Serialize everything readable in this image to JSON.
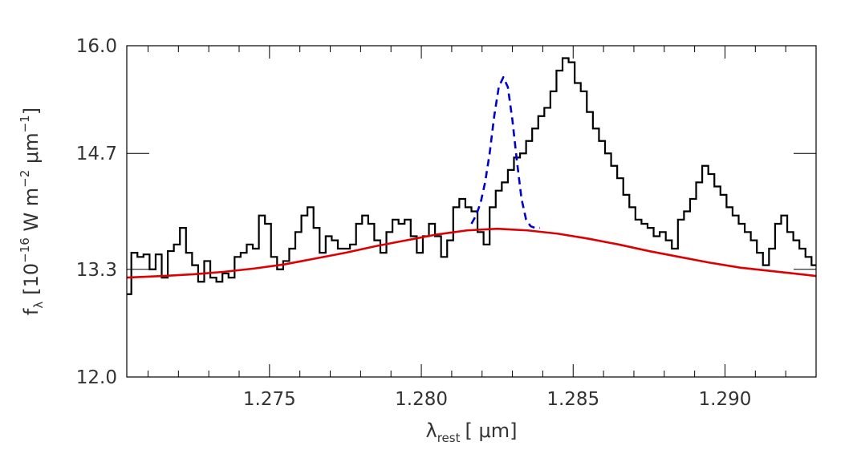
{
  "chart_data": {
    "type": "line",
    "xlabel": {
      "main": "λ",
      "sub": "rest",
      "unit": "[ μm]"
    },
    "ylabel": {
      "f": "f",
      "fsub": "λ",
      "pre": "[10",
      "exp1": "−16",
      "mid": " W m",
      "exp2": "−2",
      "unit": " μm",
      "exp3": "−1",
      "close": "]"
    },
    "xlim": [
      1.2703,
      1.293
    ],
    "ylim": [
      12.0,
      16.0
    ],
    "x_ticks": [
      1.275,
      1.28,
      1.285,
      1.29
    ],
    "x_tick_labels": [
      "1.275",
      "1.280",
      "1.285",
      "1.290"
    ],
    "y_ticks": [
      12.0,
      13.3,
      14.7,
      16.0
    ],
    "y_tick_labels": [
      "12.0",
      "13.3",
      "14.7",
      "16.0"
    ],
    "series": [
      {
        "style": "histogram",
        "color": "#000000",
        "x": [
          1.27035,
          1.27055,
          1.27075,
          1.27095,
          1.27115,
          1.27135,
          1.27155,
          1.27175,
          1.27195,
          1.27215,
          1.27235,
          1.27255,
          1.27275,
          1.27295,
          1.27315,
          1.27335,
          1.27355,
          1.27375,
          1.27395,
          1.27415,
          1.27435,
          1.27455,
          1.27475,
          1.27495,
          1.27515,
          1.27535,
          1.27555,
          1.27575,
          1.27595,
          1.27615,
          1.27635,
          1.27655,
          1.27675,
          1.27695,
          1.27715,
          1.27735,
          1.27755,
          1.27775,
          1.27795,
          1.27815,
          1.27835,
          1.27855,
          1.27875,
          1.27895,
          1.27915,
          1.27935,
          1.27955,
          1.27975,
          1.27995,
          1.28015,
          1.28035,
          1.28055,
          1.28075,
          1.28095,
          1.28115,
          1.28135,
          1.28155,
          1.28175,
          1.28195,
          1.28215,
          1.28235,
          1.28255,
          1.28275,
          1.28295,
          1.28315,
          1.28335,
          1.28355,
          1.28375,
          1.28395,
          1.28415,
          1.28435,
          1.28455,
          1.28475,
          1.28495,
          1.28515,
          1.28535,
          1.28555,
          1.28575,
          1.28595,
          1.28615,
          1.28635,
          1.28655,
          1.28675,
          1.28695,
          1.28715,
          1.28735,
          1.28755,
          1.28775,
          1.28795,
          1.28815,
          1.28835,
          1.28855,
          1.28875,
          1.28895,
          1.28915,
          1.28935,
          1.28955,
          1.28975,
          1.28995,
          1.29015,
          1.29035,
          1.29055,
          1.29075,
          1.29095,
          1.29115,
          1.29135,
          1.29155,
          1.29175,
          1.29195,
          1.29215,
          1.29235,
          1.29255,
          1.29275,
          1.29295
        ],
        "y": [
          13.0,
          13.5,
          13.45,
          13.48,
          13.3,
          13.48,
          13.2,
          13.52,
          13.6,
          13.8,
          13.5,
          13.35,
          13.15,
          13.4,
          13.2,
          13.15,
          13.25,
          13.2,
          13.45,
          13.5,
          13.6,
          13.55,
          13.95,
          13.85,
          13.45,
          13.3,
          13.4,
          13.55,
          13.75,
          13.95,
          14.05,
          13.8,
          13.5,
          13.7,
          13.65,
          13.55,
          13.55,
          13.6,
          13.85,
          13.95,
          13.85,
          13.65,
          13.5,
          13.75,
          13.9,
          13.85,
          13.9,
          13.7,
          13.5,
          13.7,
          13.85,
          13.7,
          13.45,
          13.65,
          14.05,
          14.15,
          14.05,
          14.0,
          13.75,
          13.6,
          14.05,
          14.25,
          14.35,
          14.5,
          14.65,
          14.7,
          14.85,
          15.0,
          15.15,
          15.25,
          15.45,
          15.7,
          15.85,
          15.8,
          15.55,
          15.45,
          15.2,
          15.0,
          14.85,
          14.7,
          14.55,
          14.4,
          14.2,
          14.05,
          13.9,
          13.85,
          13.8,
          13.7,
          13.75,
          13.65,
          13.55,
          13.9,
          14.0,
          14.15,
          14.35,
          14.55,
          14.45,
          14.3,
          14.2,
          14.05,
          13.95,
          13.85,
          13.75,
          13.65,
          13.5,
          13.35,
          13.55,
          13.85,
          13.95,
          13.75,
          13.65,
          13.55,
          13.45,
          13.35
        ]
      },
      {
        "style": "dashed",
        "color": "#0000cc",
        "x": [
          1.28165,
          1.2818,
          1.28195,
          1.2821,
          1.28225,
          1.2824,
          1.28255,
          1.2827,
          1.28285,
          1.283,
          1.28315,
          1.2833,
          1.28345,
          1.2836,
          1.28375,
          1.2839
        ],
        "y": [
          13.85,
          13.95,
          14.1,
          14.35,
          14.7,
          15.15,
          15.5,
          15.62,
          15.5,
          15.1,
          14.6,
          14.15,
          13.9,
          13.82,
          13.8,
          13.8
        ]
      },
      {
        "style": "solid",
        "color": "#dd0000",
        "x": [
          1.2703,
          1.2715,
          1.2725,
          1.2735,
          1.2745,
          1.2755,
          1.2765,
          1.2775,
          1.2785,
          1.2795,
          1.2805,
          1.2815,
          1.2825,
          1.2835,
          1.2845,
          1.2855,
          1.2865,
          1.2875,
          1.2885,
          1.2895,
          1.2905,
          1.2915,
          1.2925,
          1.293
        ],
        "y": [
          13.2,
          13.22,
          13.24,
          13.27,
          13.31,
          13.36,
          13.43,
          13.5,
          13.58,
          13.65,
          13.72,
          13.77,
          13.79,
          13.77,
          13.73,
          13.67,
          13.6,
          13.52,
          13.45,
          13.38,
          13.32,
          13.28,
          13.24,
          13.22
        ]
      }
    ]
  }
}
